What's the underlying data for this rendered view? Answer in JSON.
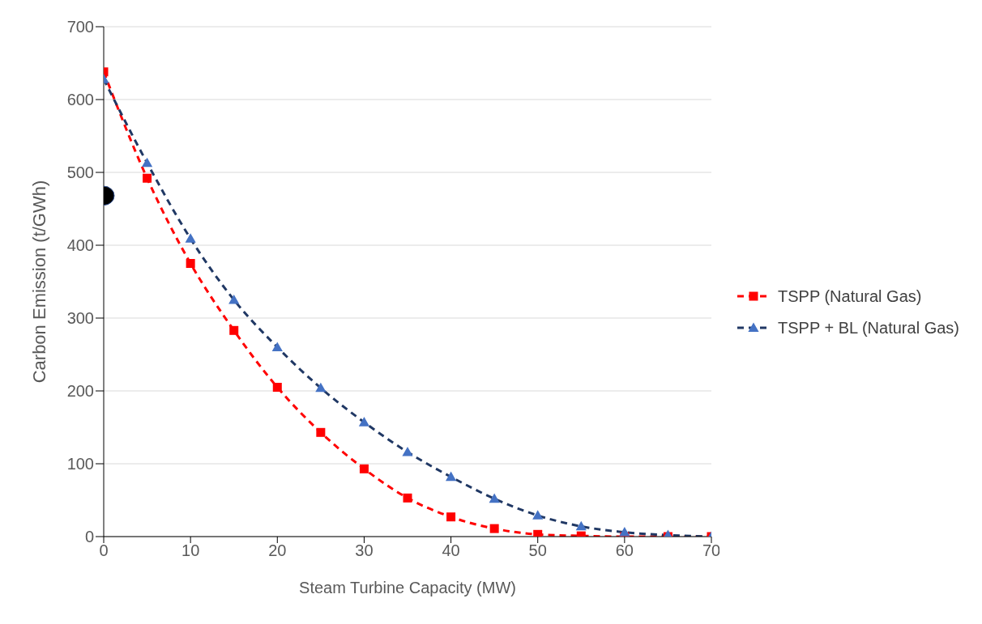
{
  "chart_data": {
    "type": "line",
    "xlabel": "Steam Turbine Capacity (MW)",
    "ylabel": "Carbon Emission (t/GWh)",
    "x": [
      0,
      5,
      10,
      15,
      20,
      25,
      30,
      35,
      40,
      45,
      50,
      55,
      60,
      65,
      70
    ],
    "series": [
      {
        "name": "TSPP (Natural Gas)",
        "color": "#ff0000",
        "marker": "square",
        "line_style": "dashed",
        "values": [
          638,
          492,
          375,
          283,
          205,
          143,
          93,
          53,
          27,
          11,
          3,
          1,
          0,
          0,
          0
        ]
      },
      {
        "name": "TSPP + BL (Natural Gas)",
        "color": "#203864",
        "marker": "triangle",
        "line_style": "dashed",
        "values": [
          628,
          513,
          409,
          325,
          260,
          204,
          157,
          116,
          82,
          52,
          29,
          14,
          6,
          2,
          0
        ]
      },
      {
        "type": "scatter",
        "color": "#000000",
        "marker": "circle",
        "x": [
          0
        ],
        "values": [
          468
        ]
      }
    ],
    "xlim": [
      0,
      70
    ],
    "xticks": [
      0,
      10,
      20,
      30,
      40,
      50,
      60,
      70
    ],
    "ylim": [
      0,
      700
    ],
    "yticks": [
      0,
      100,
      200,
      300,
      400,
      500,
      600,
      700
    ],
    "grid": "y",
    "legend": "right"
  }
}
